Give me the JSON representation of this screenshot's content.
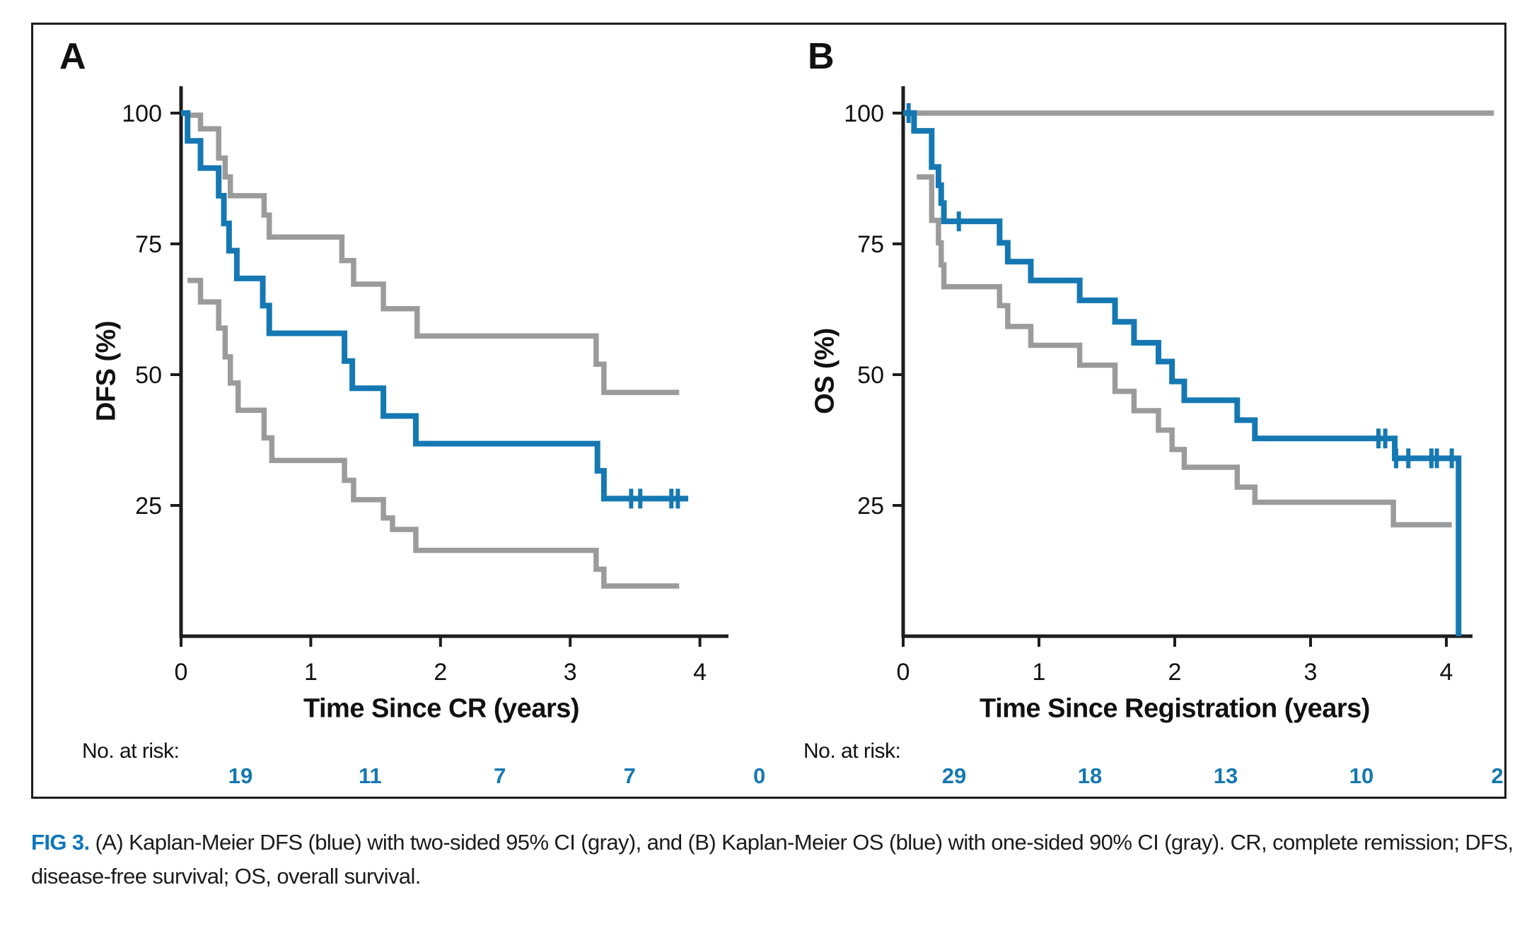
{
  "colors": {
    "km_blue": "#1578b2",
    "ci_gray": "#9b9b9b",
    "axis_black": "#1d1d1d",
    "at_risk_blue": "#1578b2",
    "fig_label_blue": "#0d76bc"
  },
  "chart_data": [
    {
      "type": "line",
      "variant": "kaplan-meier-step",
      "panel_label": "A",
      "ylabel": "DFS (%)",
      "xlabel": "Time Since CR (years)",
      "xticks": [
        0,
        1,
        2,
        3,
        4
      ],
      "yticks": [
        100,
        75,
        50,
        25
      ],
      "xlim": [
        0,
        4.2
      ],
      "ylim": [
        0,
        100
      ],
      "at_risk_label": "No. at risk:",
      "at_risk": [
        19,
        11,
        7,
        7,
        0
      ],
      "series": [
        {
          "name": "DFS Kaplan-Meier estimate",
          "role": "km",
          "steps": [
            [
              0,
              100
            ],
            [
              0.05,
              94.7
            ],
            [
              0.15,
              89.5
            ],
            [
              0.29,
              84.2
            ],
            [
              0.33,
              78.9
            ],
            [
              0.37,
              73.7
            ],
            [
              0.43,
              68.4
            ],
            [
              0.63,
              63.2
            ],
            [
              0.68,
              57.9
            ],
            [
              1.26,
              52.6
            ],
            [
              1.32,
              47.4
            ],
            [
              1.56,
              42.1
            ],
            [
              1.81,
              36.8
            ],
            [
              3.21,
              31.6
            ],
            [
              3.26,
              26.3
            ]
          ],
          "end_t": 3.91,
          "censors": [
            [
              3.47,
              26.3
            ],
            [
              3.54,
              26.3
            ],
            [
              3.78,
              26.3
            ],
            [
              3.83,
              26.3
            ]
          ]
        },
        {
          "name": "95% CI upper bound",
          "role": "ci_upper",
          "steps": [
            [
              0.05,
              99.6
            ],
            [
              0.15,
              97.0
            ],
            [
              0.29,
              91.4
            ],
            [
              0.34,
              87.8
            ],
            [
              0.38,
              84.2
            ],
            [
              0.64,
              80.5
            ],
            [
              0.68,
              76.3
            ],
            [
              1.24,
              71.8
            ],
            [
              1.33,
              67.3
            ],
            [
              1.56,
              62.6
            ],
            [
              1.82,
              57.4
            ],
            [
              3.2,
              52.0
            ],
            [
              3.26,
              46.6
            ]
          ],
          "end_t": 3.84,
          "censors": []
        },
        {
          "name": "95% CI lower bound",
          "role": "ci_lower",
          "steps": [
            [
              0.05,
              68.0
            ],
            [
              0.15,
              63.9
            ],
            [
              0.29,
              58.9
            ],
            [
              0.34,
              53.4
            ],
            [
              0.38,
              48.4
            ],
            [
              0.44,
              43.2
            ],
            [
              0.64,
              37.9
            ],
            [
              0.7,
              33.6
            ],
            [
              1.26,
              29.8
            ],
            [
              1.33,
              26.1
            ],
            [
              1.56,
              22.6
            ],
            [
              1.63,
              20.4
            ],
            [
              1.81,
              16.4
            ],
            [
              3.2,
              12.8
            ],
            [
              3.26,
              9.6
            ]
          ],
          "end_t": 3.84,
          "censors": []
        }
      ]
    },
    {
      "type": "line",
      "variant": "kaplan-meier-step",
      "panel_label": "B",
      "ylabel": "OS (%)",
      "xlabel": "Time Since Registration (years)",
      "xticks": [
        0,
        1,
        2,
        3,
        4
      ],
      "yticks": [
        100,
        75,
        50,
        25
      ],
      "xlim": [
        0,
        4.2
      ],
      "ylim": [
        0,
        100
      ],
      "at_risk_label": "No. at risk:",
      "at_risk": [
        29,
        18,
        13,
        10,
        2
      ],
      "series": [
        {
          "name": "OS Kaplan-Meier estimate",
          "role": "km",
          "steps": [
            [
              0,
              100
            ],
            [
              0.08,
              96.6
            ],
            [
              0.21,
              89.7
            ],
            [
              0.26,
              86.2
            ],
            [
              0.28,
              82.8
            ],
            [
              0.3,
              79.3
            ],
            [
              0.71,
              75.2
            ],
            [
              0.77,
              71.6
            ],
            [
              0.94,
              68.0
            ],
            [
              1.3,
              64.2
            ],
            [
              1.56,
              60.1
            ],
            [
              1.7,
              56.1
            ],
            [
              1.88,
              52.5
            ],
            [
              1.98,
              48.7
            ],
            [
              2.07,
              45.1
            ],
            [
              2.46,
              41.3
            ],
            [
              2.59,
              37.8
            ],
            [
              3.62,
              34.0
            ],
            [
              4.09,
              0
            ]
          ],
          "end_t": 4.09,
          "censors": [
            [
              0.04,
              100
            ],
            [
              0.41,
              79.3
            ],
            [
              3.5,
              37.8
            ],
            [
              3.55,
              37.8
            ],
            [
              3.63,
              34.0
            ],
            [
              3.72,
              34.0
            ],
            [
              3.89,
              34.0
            ],
            [
              3.93,
              34.0
            ],
            [
              4.04,
              34.0
            ]
          ]
        },
        {
          "name": "90% CI upper bound (one-sided)",
          "role": "ci_upper",
          "steps": [
            [
              0.02,
              100
            ]
          ],
          "end_t": 4.35,
          "censors": []
        },
        {
          "name": "90% CI lower bound (one-sided)",
          "role": "ci_lower",
          "steps": [
            [
              0.1,
              87.8
            ],
            [
              0.21,
              79.5
            ],
            [
              0.26,
              75.2
            ],
            [
              0.28,
              71.0
            ],
            [
              0.3,
              66.8
            ],
            [
              0.71,
              63.2
            ],
            [
              0.77,
              59.2
            ],
            [
              0.94,
              55.6
            ],
            [
              1.3,
              51.8
            ],
            [
              1.56,
              46.8
            ],
            [
              1.7,
              43.1
            ],
            [
              1.88,
              39.4
            ],
            [
              1.98,
              35.7
            ],
            [
              2.07,
              32.3
            ],
            [
              2.46,
              28.5
            ],
            [
              2.59,
              25.6
            ],
            [
              3.61,
              21.3
            ]
          ],
          "end_t": 4.04,
          "censors": []
        }
      ]
    }
  ],
  "caption": {
    "fig_label": "FIG 3.",
    "text": " (A) Kaplan-Meier DFS (blue) with two-sided 95% CI (gray), and (B) Kaplan-Meier OS (blue) with one-sided 90% CI (gray). CR, complete remission; DFS, disease-free survival; OS, overall survival."
  }
}
